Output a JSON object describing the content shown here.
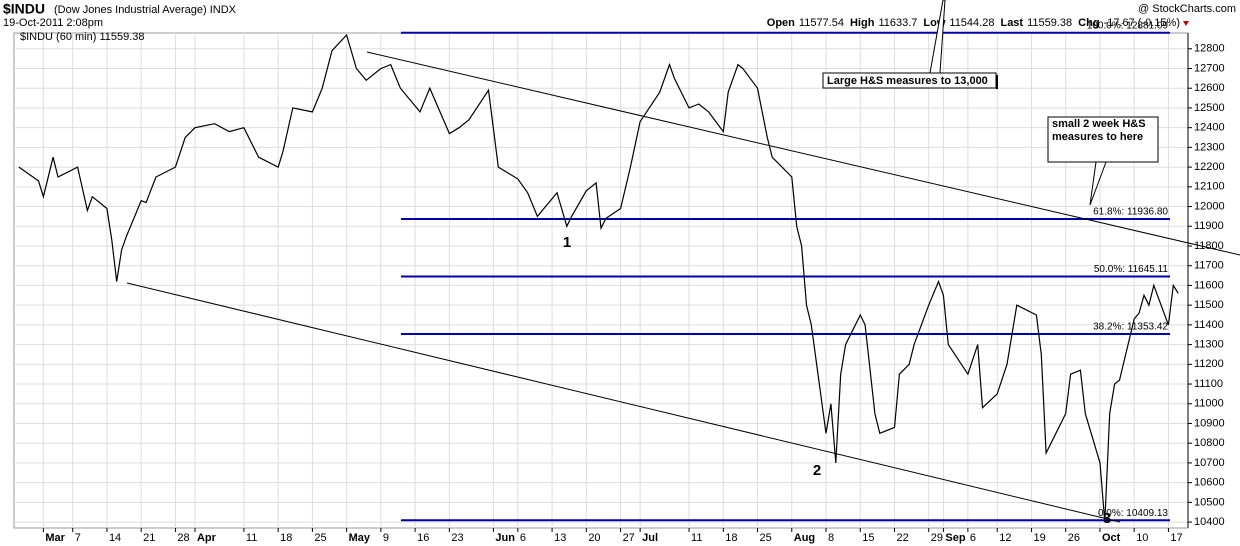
{
  "chart_data": {
    "type": "line",
    "title": "$INDU",
    "subtitle": "(Dow Jones Industrial Average) INDX",
    "date": "19-Oct-2011 2:08pm",
    "source": "@ StockCharts.com",
    "quote": [
      {
        "label": "Open",
        "value": 11577.54
      },
      {
        "label": "High",
        "value": 11633.7
      },
      {
        "label": "Low",
        "value": 11544.28
      },
      {
        "label": "Last",
        "value": 11559.38
      },
      {
        "label": "Chg",
        "value": "-17.67 (-0.15%)"
      }
    ],
    "legend_value": 11559.38,
    "annotations": [
      {
        "text": "1"
      },
      {
        "text": "2"
      },
      {
        "text": "3"
      },
      {
        "text": "Large H&S measures to 13,000"
      },
      {
        "text": "small 2 week H&S measures to here"
      }
    ],
    "levels": [
      {
        "label": "100.0%: 12881.09",
        "value": 12881.09
      },
      {
        "label": "61.8%: 11936.80",
        "value": 11936.8
      },
      {
        "label": "50.0%: 11645.11",
        "value": 11645.11
      },
      {
        "label": "38.2%: 11353.42",
        "value": 11353.42
      },
      {
        "label": "0.0%: 10409.13",
        "value": 10409.13
      }
    ],
    "level_color": "#0000aa",
    "grid": true,
    "xlim": [
      "2011-02-23",
      "2011-10-21"
    ],
    "ylim": [
      10370,
      12880
    ],
    "yticks": [
      10400,
      10500,
      10600,
      10700,
      10800,
      10900,
      11000,
      11100,
      11200,
      11300,
      11400,
      11500,
      11600,
      11700,
      11800,
      11900,
      12000,
      12100,
      12200,
      12300,
      12400,
      12500,
      12600,
      12700,
      12800
    ],
    "xticks": [
      {
        "value": "2011-03-01",
        "label": "Mar"
      },
      {
        "value": "2011-03-07",
        "label": "7"
      },
      {
        "value": "2011-03-14",
        "label": "14"
      },
      {
        "value": "2011-03-21",
        "label": "21"
      },
      {
        "value": "2011-03-28",
        "label": "28"
      },
      {
        "value": "2011-04-01",
        "label": "Apr"
      },
      {
        "value": "2011-04-11",
        "label": "11"
      },
      {
        "value": "2011-04-18",
        "label": "18"
      },
      {
        "value": "2011-04-25",
        "label": "25"
      },
      {
        "value": "2011-05-02",
        "label": "May"
      },
      {
        "value": "2011-05-09",
        "label": "9"
      },
      {
        "value": "2011-05-16",
        "label": "16"
      },
      {
        "value": "2011-05-23",
        "label": "23"
      },
      {
        "value": "2011-06-01",
        "label": "Jun"
      },
      {
        "value": "2011-06-06",
        "label": "6"
      },
      {
        "value": "2011-06-13",
        "label": "13"
      },
      {
        "value": "2011-06-20",
        "label": "20"
      },
      {
        "value": "2011-06-27",
        "label": "27"
      },
      {
        "value": "2011-07-01",
        "label": "Jul"
      },
      {
        "value": "2011-07-11",
        "label": "11"
      },
      {
        "value": "2011-07-18",
        "label": "18"
      },
      {
        "value": "2011-07-25",
        "label": "25"
      },
      {
        "value": "2011-08-01",
        "label": "Aug"
      },
      {
        "value": "2011-08-08",
        "label": "8"
      },
      {
        "value": "2011-08-15",
        "label": "15"
      },
      {
        "value": "2011-08-22",
        "label": "22"
      },
      {
        "value": "2011-08-29",
        "label": "29"
      },
      {
        "value": "2011-09-01",
        "label": "Sep"
      },
      {
        "value": "2011-09-06",
        "label": "6"
      },
      {
        "value": "2011-09-12",
        "label": "12"
      },
      {
        "value": "2011-09-19",
        "label": "19"
      },
      {
        "value": "2011-09-26",
        "label": "26"
      },
      {
        "value": "2011-10-03",
        "label": "Oct"
      },
      {
        "value": "2011-10-10",
        "label": "10"
      },
      {
        "value": "2011-10-17",
        "label": "17"
      }
    ],
    "x": [
      "2011-02-24",
      "2011-02-28",
      "2011-03-01",
      "2011-03-03",
      "2011-03-04",
      "2011-03-08",
      "2011-03-10",
      "2011-03-11",
      "2011-03-14",
      "2011-03-15",
      "2011-03-16",
      "2011-03-17",
      "2011-03-18",
      "2011-03-21",
      "2011-03-22",
      "2011-03-24",
      "2011-03-28",
      "2011-03-30",
      "2011-04-01",
      "2011-04-05",
      "2011-04-08",
      "2011-04-11",
      "2011-04-14",
      "2011-04-18",
      "2011-04-19",
      "2011-04-21",
      "2011-04-25",
      "2011-04-27",
      "2011-04-29",
      "2011-05-02",
      "2011-05-04",
      "2011-05-06",
      "2011-05-09",
      "2011-05-11",
      "2011-05-13",
      "2011-05-17",
      "2011-05-19",
      "2011-05-23",
      "2011-05-25",
      "2011-05-27",
      "2011-05-31",
      "2011-06-02",
      "2011-06-06",
      "2011-06-08",
      "2011-06-10",
      "2011-06-14",
      "2011-06-16",
      "2011-06-17",
      "2011-06-20",
      "2011-06-22",
      "2011-06-23",
      "2011-06-24",
      "2011-06-27",
      "2011-06-29",
      "2011-07-01",
      "2011-07-05",
      "2011-07-07",
      "2011-07-08",
      "2011-07-11",
      "2011-07-13",
      "2011-07-15",
      "2011-07-18",
      "2011-07-19",
      "2011-07-21",
      "2011-07-22",
      "2011-07-25",
      "2011-07-27",
      "2011-07-28",
      "2011-08-01",
      "2011-08-02",
      "2011-08-03",
      "2011-08-04",
      "2011-08-05",
      "2011-08-08",
      "2011-08-09",
      "2011-08-10",
      "2011-08-11",
      "2011-08-12",
      "2011-08-15",
      "2011-08-16",
      "2011-08-18",
      "2011-08-19",
      "2011-08-22",
      "2011-08-23",
      "2011-08-25",
      "2011-08-26",
      "2011-08-29",
      "2011-08-31",
      "2011-09-01",
      "2011-09-02",
      "2011-09-06",
      "2011-09-08",
      "2011-09-09",
      "2011-09-12",
      "2011-09-14",
      "2011-09-16",
      "2011-09-20",
      "2011-09-21",
      "2011-09-22",
      "2011-09-23",
      "2011-09-26",
      "2011-09-27",
      "2011-09-29",
      "2011-09-30",
      "2011-10-03",
      "2011-10-04",
      "2011-10-05",
      "2011-10-06",
      "2011-10-07",
      "2011-10-10",
      "2011-10-11",
      "2011-10-12",
      "2011-10-13",
      "2011-10-14",
      "2011-10-17",
      "2011-10-18",
      "2011-10-19"
    ],
    "series": [
      {
        "name": "$INDU (60 min)",
        "color": "#000000",
        "values": [
          12200,
          12130,
          12050,
          12250,
          12150,
          12200,
          11980,
          12050,
          11990,
          11830,
          11620,
          11780,
          11850,
          12030,
          12020,
          12150,
          12200,
          12350,
          12400,
          12420,
          12380,
          12400,
          12250,
          12200,
          12280,
          12500,
          12480,
          12600,
          12790,
          12870,
          12700,
          12640,
          12700,
          12720,
          12600,
          12480,
          12600,
          12370,
          12400,
          12440,
          12590,
          12200,
          12140,
          12070,
          11950,
          12070,
          11900,
          11950,
          12080,
          12120,
          11890,
          11940,
          11990,
          12200,
          12430,
          12580,
          12720,
          12650,
          12500,
          12520,
          12480,
          12380,
          12580,
          12720,
          12700,
          12600,
          12350,
          12250,
          12150,
          11900,
          11800,
          11500,
          11400,
          10850,
          11000,
          10700,
          11150,
          11300,
          11450,
          11400,
          10950,
          10850,
          10880,
          11150,
          11200,
          11300,
          11500,
          11620,
          11550,
          11300,
          11150,
          11300,
          10980,
          11050,
          11200,
          11500,
          11450,
          11250,
          10750,
          10800,
          10950,
          11150,
          11170,
          10950,
          10700,
          10400,
          10950,
          11100,
          11120,
          11430,
          11460,
          11550,
          11500,
          11600,
          11400,
          11600,
          11560
        ]
      }
    ]
  }
}
